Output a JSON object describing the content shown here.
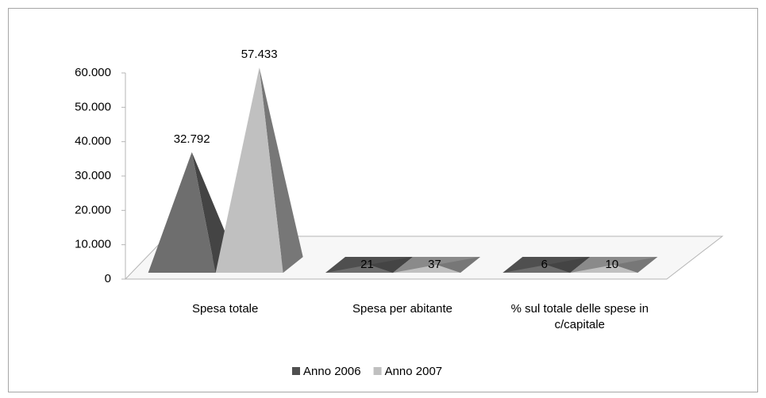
{
  "chart_data": {
    "type": "pyramid",
    "categories": [
      "Spesa totale",
      "Spesa per abitante",
      "% sul totale delle spese in c/capitale"
    ],
    "series": [
      {
        "name": "Anno 2006",
        "color": "#6e6e6e",
        "values": [
          32792,
          21,
          6
        ],
        "value_labels": [
          "32.792",
          "21",
          "6"
        ]
      },
      {
        "name": "Anno 2007",
        "color": "#c0c0c0",
        "values": [
          57433,
          37,
          10
        ],
        "value_labels": [
          "57.433",
          "37",
          "10"
        ]
      }
    ],
    "ylim": [
      0,
      60000
    ],
    "yticks": [
      0,
      {
        "value": 10000,
        "label": "10.000"
      },
      {
        "value": 20000,
        "label": "20.000"
      },
      {
        "value": 30000,
        "label": "30.000"
      },
      {
        "value": 40000,
        "label": "40.000"
      },
      {
        "value": 50000,
        "label": "50.000"
      },
      {
        "value": 60000,
        "label": "60.000"
      }
    ],
    "legend": "bottom"
  }
}
